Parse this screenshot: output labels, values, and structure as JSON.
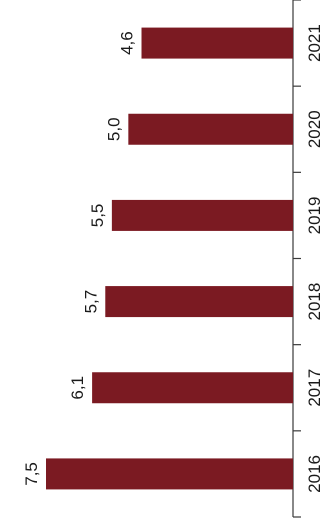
{
  "chart_data": {
    "type": "bar",
    "orientation": "horizontal",
    "categories": [
      "2016",
      "2017",
      "2018",
      "2019",
      "2020",
      "2021"
    ],
    "values": [
      7.5,
      6.1,
      5.7,
      5.5,
      5.0,
      4.6
    ],
    "value_labels": [
      "7,5",
      "6,1",
      "5,7",
      "5,5",
      "5,0",
      "4,6"
    ],
    "bar_color": "#7b1a22",
    "grid": false,
    "legend": "none",
    "xlim": [
      0,
      8
    ]
  }
}
